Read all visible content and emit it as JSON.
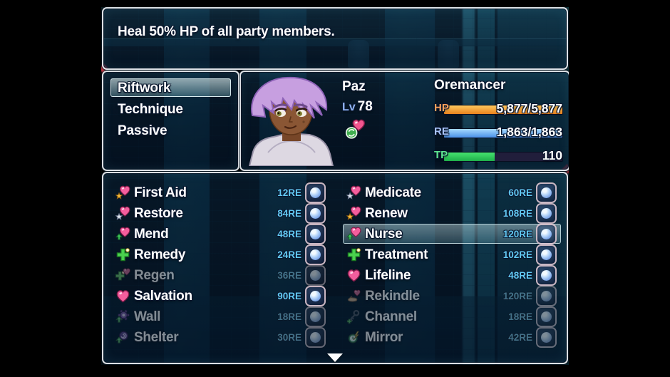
{
  "help_window": {
    "text": "Heal 50% HP of all party members."
  },
  "skill_type_menu": {
    "items": [
      {
        "label": "Riftwork",
        "selected": true
      },
      {
        "label": "Technique",
        "selected": false
      },
      {
        "label": "Passive",
        "selected": false
      }
    ]
  },
  "status_window": {
    "name": "Paz",
    "level_label": "Lv",
    "level": "78",
    "class_name": "Oremancer",
    "buff_icons": [
      "regen-heart-icon"
    ],
    "gauges": [
      {
        "label": "HP",
        "value": "5,877/5,877",
        "fill_ratio": 1,
        "label_color": "#ffa05a",
        "bar_from": "#e8821e",
        "bar_to": "#ffc95e"
      },
      {
        "label": "RE",
        "value": "1,863/1,863",
        "fill_ratio": 1,
        "label_color": "#a8c2f8",
        "bar_from": "#4a90e8",
        "bar_to": "#a6daff"
      },
      {
        "label": "TP",
        "value": "110",
        "fill_ratio": 0.43,
        "label_color": "#5ee690",
        "bar_from": "#1faf4a",
        "bar_to": "#45e36e"
      }
    ]
  },
  "skill_window": {
    "columns": [
      {
        "skills": [
          {
            "name": "First Aid",
            "cost": "12RE",
            "icon": "heart-gold-star-icon",
            "enabled": true,
            "selected": false
          },
          {
            "name": "Restore",
            "cost": "84RE",
            "icon": "heart-silver-star-icon",
            "enabled": true,
            "selected": false
          },
          {
            "name": "Mend",
            "cost": "48RE",
            "icon": "heart-up-arrow-icon",
            "enabled": true,
            "selected": false
          },
          {
            "name": "Remedy",
            "cost": "24RE",
            "icon": "green-cross-icon",
            "enabled": true,
            "selected": false
          },
          {
            "name": "Regen",
            "cost": "36RE",
            "icon": "cross-heart-icon",
            "enabled": false,
            "selected": false
          },
          {
            "name": "Salvation",
            "cost": "90RE",
            "icon": "pink-heart-icon",
            "enabled": true,
            "selected": false
          },
          {
            "name": "Wall",
            "cost": "18RE",
            "icon": "gear-up-arrow-icon",
            "enabled": false,
            "selected": false
          },
          {
            "name": "Shelter",
            "cost": "30RE",
            "icon": "swirl-up-arrow-icon",
            "enabled": false,
            "selected": false
          }
        ]
      },
      {
        "skills": [
          {
            "name": "Medicate",
            "cost": "60RE",
            "icon": "heart-silver-star-icon",
            "enabled": true,
            "selected": false
          },
          {
            "name": "Renew",
            "cost": "108RE",
            "icon": "heart-gold-star-icon",
            "enabled": true,
            "selected": false
          },
          {
            "name": "Nurse",
            "cost": "120RE",
            "icon": "heart-up-arrow-icon",
            "enabled": true,
            "selected": true
          },
          {
            "name": "Treatment",
            "cost": "102RE",
            "icon": "green-cross-icon",
            "enabled": true,
            "selected": false
          },
          {
            "name": "Lifeline",
            "cost": "48RE",
            "icon": "pink-heart-icon",
            "enabled": true,
            "selected": false
          },
          {
            "name": "Rekindle",
            "cost": "120RE",
            "icon": "hand-heart-icon",
            "enabled": false,
            "selected": false
          },
          {
            "name": "Channel",
            "cost": "18RE",
            "icon": "key-cross-icon",
            "enabled": false,
            "selected": false
          },
          {
            "name": "Mirror",
            "cost": "42RE",
            "icon": "clock-bolt-icon",
            "enabled": false,
            "selected": false
          }
        ]
      }
    ],
    "scroll_down_icon": "scroll-down-arrow-icon"
  }
}
